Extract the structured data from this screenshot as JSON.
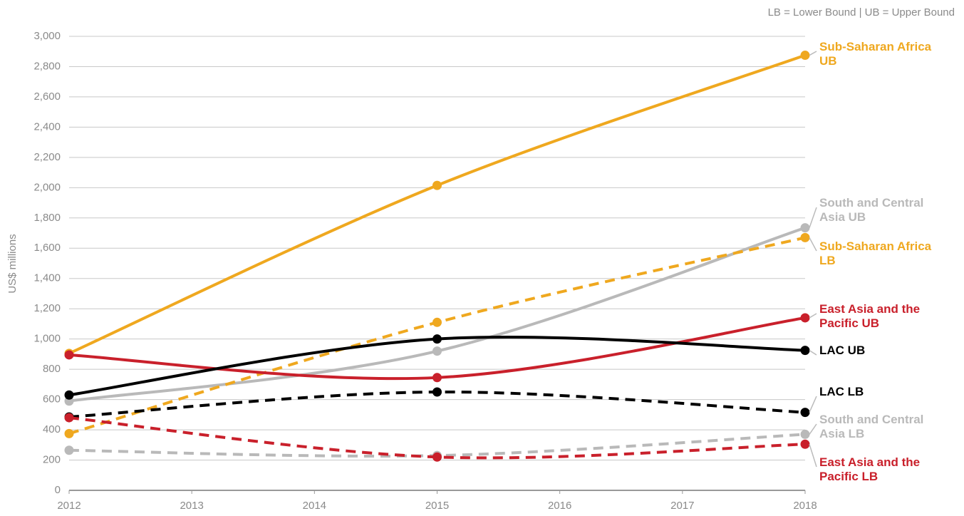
{
  "chart_data": {
    "type": "line",
    "note": "LB = Lower Bound | UB = Upper Bound",
    "y_label": "US$ millions",
    "x": [
      2012,
      2015,
      2018
    ],
    "xlim": [
      2012,
      2018
    ],
    "xticks": [
      2012,
      2013,
      2014,
      2015,
      2016,
      2017,
      2018
    ],
    "ylim": [
      0,
      3000
    ],
    "yticks": [
      0,
      200,
      400,
      600,
      800,
      {
        "value": 1000,
        "label": "1,000"
      },
      {
        "value": 1200,
        "label": "1,200"
      },
      {
        "value": 1400,
        "label": "1,400"
      },
      {
        "value": 1600,
        "label": "1,600"
      },
      {
        "value": 1800,
        "label": "1,800"
      },
      {
        "value": 2000,
        "label": "2,000"
      },
      {
        "value": 2200,
        "label": "2,200"
      },
      {
        "value": 2400,
        "label": "2,400"
      },
      {
        "value": 2600,
        "label": "2,600"
      },
      {
        "value": 2800,
        "label": "2,800"
      },
      {
        "value": 3000,
        "label": "3,000"
      }
    ],
    "grid": true,
    "series": [
      {
        "name": "Sub-Saharan Africa UB",
        "color": "#efa81f",
        "dashed": false,
        "values": [
          905,
          2015,
          2875
        ]
      },
      {
        "name": "South and Central Asia UB",
        "color": "#b9b9b9",
        "dashed": false,
        "values": [
          590,
          920,
          1735
        ]
      },
      {
        "name": "Sub-Saharan Africa LB",
        "color": "#efa81f",
        "dashed": true,
        "values": [
          375,
          1110,
          1670
        ]
      },
      {
        "name": "East Asia and the Pacific UB",
        "color": "#c9202b",
        "dashed": false,
        "values": [
          895,
          745,
          1140
        ]
      },
      {
        "name": "LAC UB",
        "color": "#000000",
        "dashed": false,
        "values": [
          630,
          1000,
          925
        ]
      },
      {
        "name": "LAC LB",
        "color": "#000000",
        "dashed": true,
        "values": [
          485,
          650,
          515
        ]
      },
      {
        "name": "South and Central Asia LB",
        "color": "#b9b9b9",
        "dashed": true,
        "values": [
          265,
          230,
          370
        ]
      },
      {
        "name": "East Asia and the Pacific LB",
        "color": "#c9202b",
        "dashed": true,
        "values": [
          480,
          220,
          305
        ]
      }
    ]
  }
}
